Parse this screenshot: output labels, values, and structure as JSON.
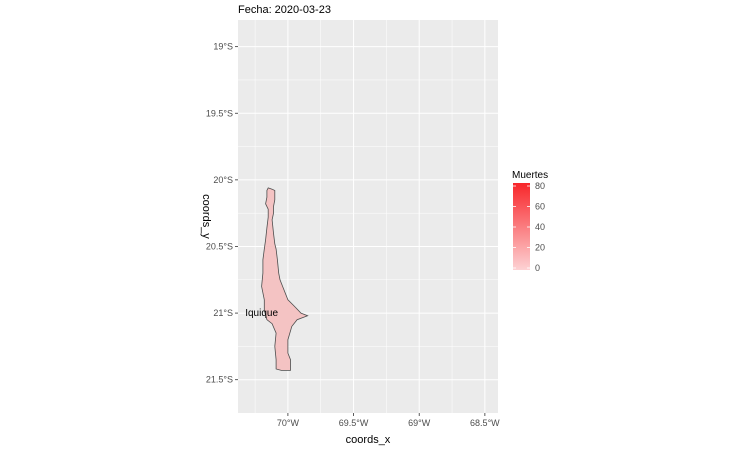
{
  "title": "Fecha: 2020-03-23",
  "colors": {
    "panel_bg": "#ebebeb",
    "grid": "#ffffff",
    "region_fill": "#f4c3c3",
    "region_stroke": "#4d4d4d",
    "legend_low": "#fdd2d4",
    "legend_high": "#f8262a"
  },
  "axes": {
    "x_title": "coords_x",
    "y_title": "coords_y",
    "x_ticks": [
      {
        "value": -70.0,
        "label": "70°W"
      },
      {
        "value": -69.5,
        "label": "69.5°W"
      },
      {
        "value": -69.0,
        "label": "69°W"
      },
      {
        "value": -68.5,
        "label": "68.5°W"
      }
    ],
    "y_ticks": [
      {
        "value": -19.0,
        "label": "19°S"
      },
      {
        "value": -19.5,
        "label": "19.5°S"
      },
      {
        "value": -20.0,
        "label": "20°S"
      },
      {
        "value": -20.5,
        "label": "20.5°S"
      },
      {
        "value": -21.0,
        "label": "21°S"
      },
      {
        "value": -21.5,
        "label": "21.5°S"
      }
    ],
    "x_range": [
      -70.38,
      -68.4
    ],
    "y_range": [
      -21.75,
      -18.8
    ]
  },
  "region": {
    "name": "Iquique",
    "label_point": [
      -70.2,
      -21.0
    ],
    "outline": [
      [
        -70.15,
        -20.06
      ],
      [
        -70.12,
        -20.07
      ],
      [
        -70.1,
        -20.08
      ],
      [
        -70.1,
        -20.15
      ],
      [
        -70.11,
        -20.2
      ],
      [
        -70.11,
        -20.25
      ],
      [
        -70.12,
        -20.3
      ],
      [
        -70.11,
        -20.4
      ],
      [
        -70.1,
        -20.48
      ],
      [
        -70.09,
        -20.52
      ],
      [
        -70.08,
        -20.6
      ],
      [
        -70.07,
        -20.7
      ],
      [
        -70.06,
        -20.75
      ],
      [
        -70.04,
        -20.8
      ],
      [
        -70.0,
        -20.9
      ],
      [
        -69.95,
        -20.95
      ],
      [
        -69.9,
        -21.0
      ],
      [
        -69.85,
        -21.02
      ],
      [
        -69.93,
        -21.05
      ],
      [
        -69.97,
        -21.1
      ],
      [
        -70.0,
        -21.2
      ],
      [
        -70.0,
        -21.3
      ],
      [
        -69.98,
        -21.35
      ],
      [
        -69.98,
        -21.43
      ],
      [
        -70.05,
        -21.43
      ],
      [
        -70.09,
        -21.42
      ],
      [
        -70.09,
        -21.35
      ],
      [
        -70.1,
        -21.25
      ],
      [
        -70.09,
        -21.15
      ],
      [
        -70.12,
        -21.08
      ],
      [
        -70.16,
        -21.05
      ],
      [
        -70.18,
        -20.98
      ],
      [
        -70.18,
        -20.9
      ],
      [
        -70.2,
        -20.8
      ],
      [
        -70.19,
        -20.7
      ],
      [
        -70.19,
        -20.6
      ],
      [
        -70.18,
        -20.52
      ],
      [
        -70.17,
        -20.45
      ],
      [
        -70.16,
        -20.36
      ],
      [
        -70.15,
        -20.28
      ],
      [
        -70.15,
        -20.22
      ],
      [
        -70.17,
        -20.18
      ],
      [
        -70.16,
        -20.13
      ],
      [
        -70.16,
        -20.08
      ],
      [
        -70.15,
        -20.06
      ]
    ]
  },
  "legend": {
    "title": "Muertes",
    "min": 0,
    "max": 80,
    "ticks": [
      {
        "value": 0,
        "label": "0"
      },
      {
        "value": 20,
        "label": "20"
      },
      {
        "value": 40,
        "label": "40"
      },
      {
        "value": 60,
        "label": "60"
      },
      {
        "value": 80,
        "label": "80"
      }
    ]
  }
}
